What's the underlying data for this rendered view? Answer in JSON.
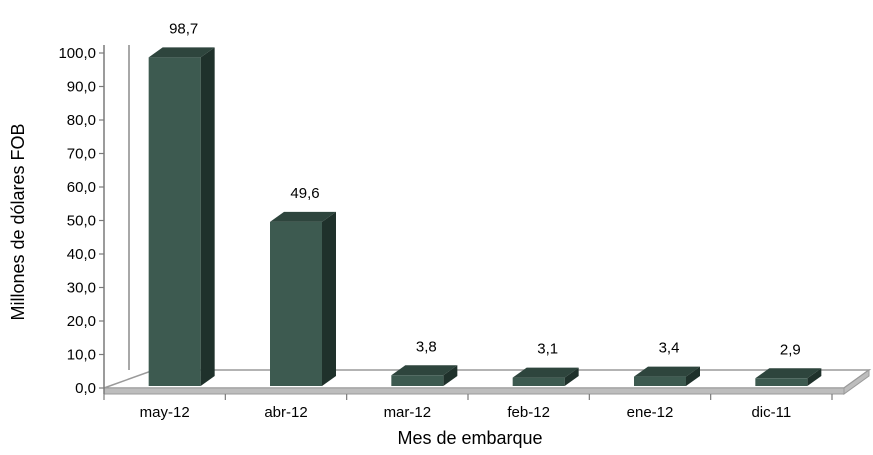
{
  "chart_data": {
    "type": "bar",
    "categories": [
      "may-12",
      "abr-12",
      "mar-12",
      "feb-12",
      "ene-12",
      "dic-11"
    ],
    "values": [
      98.7,
      49.6,
      3.8,
      3.1,
      3.4,
      2.9
    ],
    "data_labels": [
      "98,7",
      "49,6",
      "3,8",
      "3,1",
      "3,4",
      "2,9"
    ],
    "y_ticks": [
      "0,0",
      "10,0",
      "20,0",
      "30,0",
      "40,0",
      "50,0",
      "60,0",
      "70,0",
      "80,0",
      "90,0",
      "100,0"
    ],
    "ylim": [
      0,
      100
    ],
    "xlabel": "Mes de embarque",
    "ylabel": "Millones de dólares FOB",
    "grid": false,
    "legend": "none",
    "three_d": true,
    "colors": {
      "bar_front": "#3d5a50",
      "bar_top": "#2e453d",
      "bar_side": "#1f312b",
      "floor": "#bdbdbd",
      "floor_edge": "#9a9a9a"
    }
  }
}
